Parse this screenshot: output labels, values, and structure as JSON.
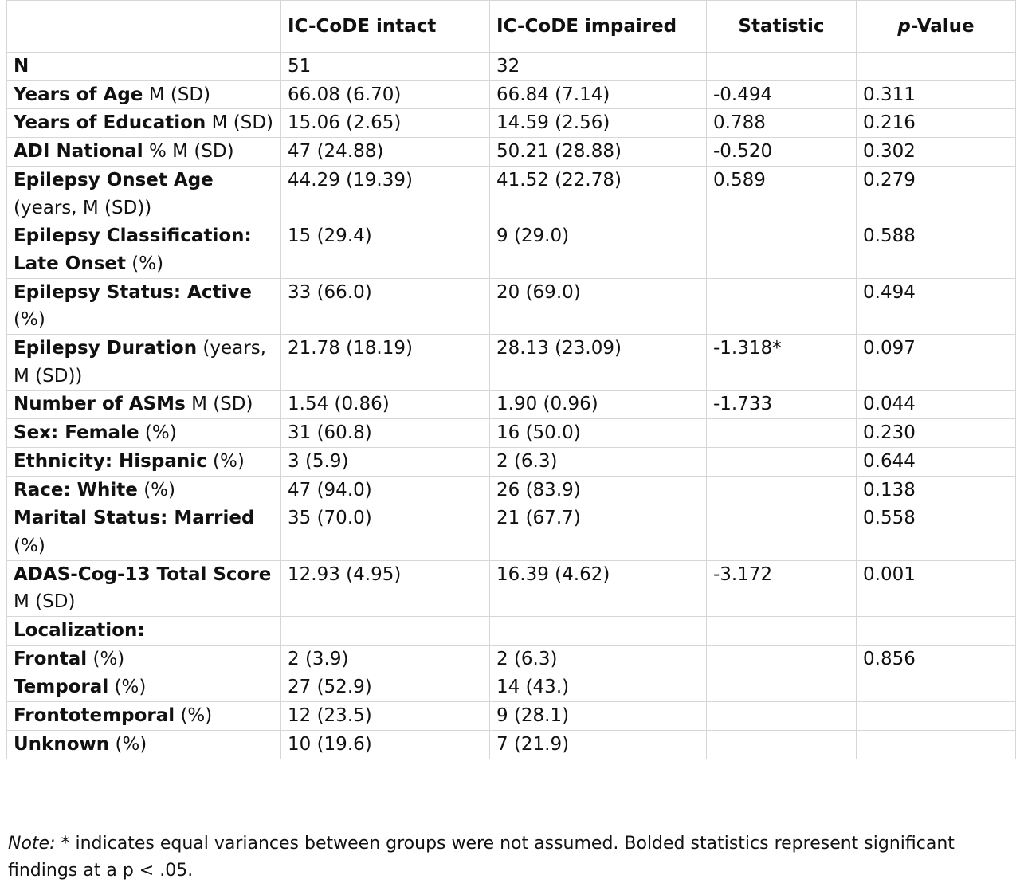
{
  "header": {
    "col0": "",
    "col1": "IC-CoDE intact",
    "col2": "IC-CoDE impaired",
    "col3": "Statistic",
    "col4_p": "p",
    "col4_rest": "-Value"
  },
  "rows": [
    {
      "label_bold": "N",
      "label_rest": "",
      "intact": "51",
      "impaired": "32",
      "statistic": "",
      "p": "",
      "bold": false
    },
    {
      "label_bold": "Years of Age",
      "label_rest": " M (SD)",
      "intact": "66.08 (6.70)",
      "impaired": "66.84 (7.14)",
      "statistic": "-0.494",
      "p": "0.311",
      "bold": false
    },
    {
      "label_bold": "Years of Education",
      "label_rest": " M (SD)",
      "intact": "15.06 (2.65)",
      "impaired": "14.59 (2.56)",
      "statistic": "0.788",
      "p": "0.216",
      "bold": false
    },
    {
      "label_bold": "ADI National",
      "label_rest": " % M (SD)",
      "intact": "47 (24.88)",
      "impaired": "50.21 (28.88)",
      "statistic": "-0.520",
      "p": "0.302",
      "bold": false
    },
    {
      "label_bold": "Epilepsy Onset Age",
      "label_rest": " (years, M (SD))",
      "intact": "44.29 (19.39)",
      "impaired": "41.52 (22.78)",
      "statistic": "0.589",
      "p": "0.279",
      "bold": false
    },
    {
      "label_bold": "Epilepsy Classification: Late Onset",
      "label_rest": " (%)",
      "intact": "15 (29.4)",
      "impaired": "9 (29.0)",
      "statistic": "",
      "p": "0.588",
      "bold": false
    },
    {
      "label_bold": "Epilepsy Status: Active",
      "label_rest": " (%)",
      "intact": "33 (66.0)",
      "impaired": "20 (69.0)",
      "statistic": "",
      "p": "0.494",
      "bold": false
    },
    {
      "label_bold": "Epilepsy Duration",
      "label_rest": " (years, M (SD))",
      "intact": "21.78 (18.19)",
      "impaired": "28.13 (23.09)",
      "statistic": "-1.318*",
      "p": "0.097",
      "bold": false
    },
    {
      "label_bold": "Number of ASMs",
      "label_rest": " M (SD)",
      "intact": "1.54 (0.86)",
      "impaired": "1.90 (0.96)",
      "statistic": "-1.733",
      "p": "0.044",
      "bold": true
    },
    {
      "label_bold": "Sex: Female",
      "label_rest": " (%)",
      "intact": "31 (60.8)",
      "impaired": "16 (50.0)",
      "statistic": "",
      "p": "0.230",
      "bold": false
    },
    {
      "label_bold": "Ethnicity: Hispanic",
      "label_rest": " (%)",
      "intact": "3 (5.9)",
      "impaired": "2 (6.3)",
      "statistic": "",
      "p": "0.644",
      "bold": false
    },
    {
      "label_bold": "Race: White",
      "label_rest": " (%)",
      "intact": "47 (94.0)",
      "impaired": "26 (83.9)",
      "statistic": "",
      "p": "0.138",
      "bold": false
    },
    {
      "label_bold": "Marital Status: Married",
      "label_rest": " (%)",
      "intact": "35 (70.0)",
      "impaired": "21 (67.7)",
      "statistic": "",
      "p": "0.558",
      "bold": false
    },
    {
      "label_bold": "ADAS-Cog-13 Total Score",
      "label_rest": " M (SD)",
      "intact": "12.93 (4.95)",
      "impaired": "16.39 (4.62)",
      "statistic": "-3.172",
      "p": "0.001",
      "bold": true
    },
    {
      "label_bold": "Localization:",
      "label_rest": "",
      "intact": "",
      "impaired": "",
      "statistic": "",
      "p": "",
      "bold": false
    },
    {
      "label_bold": "Frontal",
      "label_rest": " (%)",
      "intact": "2 (3.9)",
      "impaired": "2 (6.3)",
      "statistic": "",
      "p": "0.856",
      "bold": false
    },
    {
      "label_bold": "Temporal",
      "label_rest": " (%)",
      "intact": "27 (52.9)",
      "impaired": "14 (43.)",
      "statistic": "",
      "p": "",
      "bold": false
    },
    {
      "label_bold": "Frontotemporal",
      "label_rest": " (%)",
      "intact": "12 (23.5)",
      "impaired": "9 (28.1)",
      "statistic": "",
      "p": "",
      "bold": false
    },
    {
      "label_bold": "Unknown",
      "label_rest": " (%)",
      "intact": "10 (19.6)",
      "impaired": "7 (21.9)",
      "statistic": "",
      "p": "",
      "bold": false
    }
  ],
  "note": {
    "lead": "Note:",
    "text": " * indicates equal variances between groups were not assumed. Bolded statistics represent significant findings at a p < .05."
  }
}
